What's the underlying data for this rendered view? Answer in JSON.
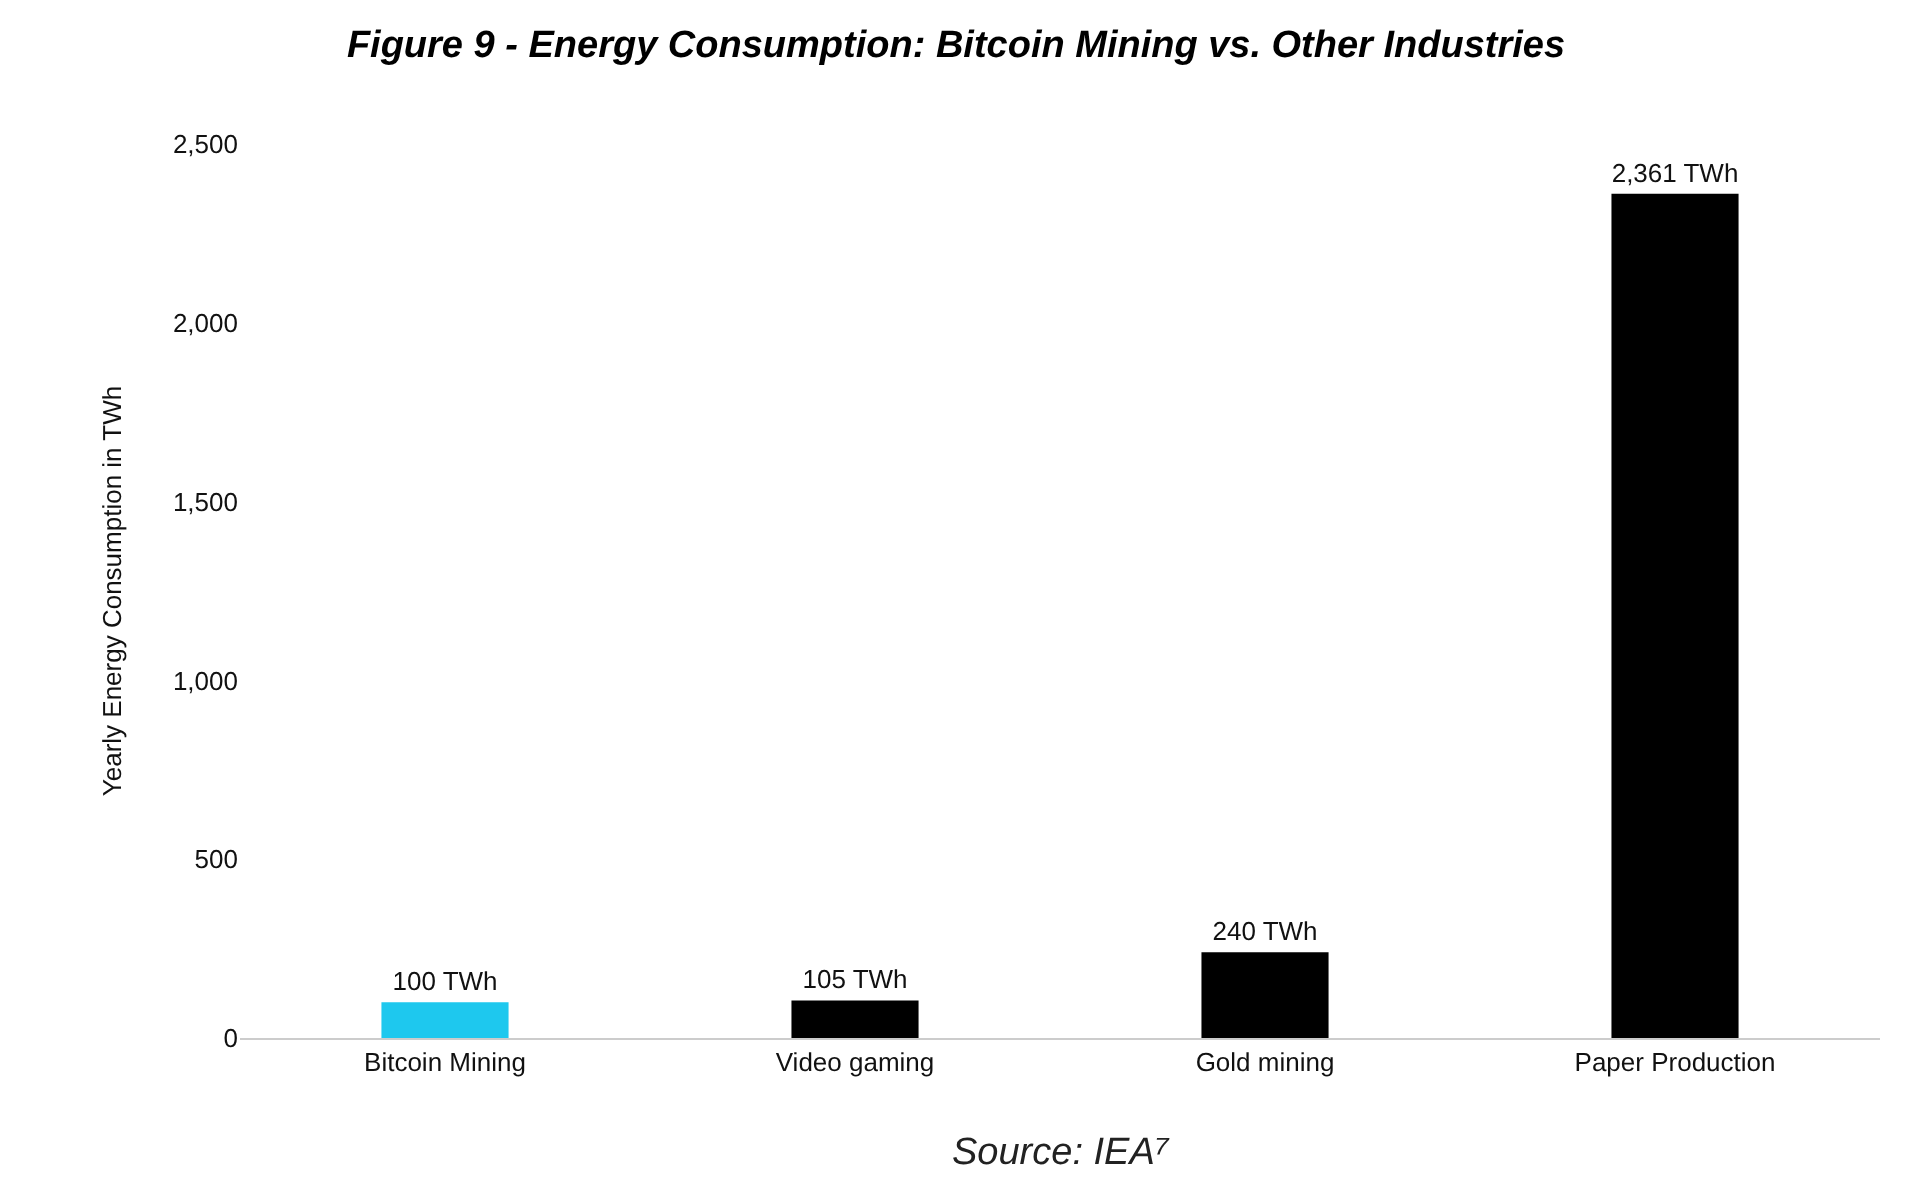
{
  "chart_data": {
    "type": "bar",
    "title": "Figure 9 - Energy Consumption: Bitcoin Mining vs. Other Industries",
    "ylabel": "Yearly Energy Consumption in TWh",
    "categories": [
      "Bitcoin Mining",
      "Video gaming",
      "Gold mining",
      "Paper Production"
    ],
    "values": [
      100,
      105,
      240,
      2361
    ],
    "colors": [
      "#1ec8ee",
      "#000000",
      "#000000",
      "#000000"
    ],
    "value_labels": [
      "100 TWh",
      "105 TWh",
      "240 TWh",
      "2,361 TWh"
    ],
    "ylim": [
      0,
      2500
    ],
    "yticks": [
      0,
      500,
      {
        "value": 1000,
        "label": "1,000"
      },
      {
        "value": 1500,
        "label": "1,500"
      },
      {
        "value": 2000,
        "label": "2,000"
      },
      {
        "value": 2500,
        "label": "2,500"
      }
    ],
    "grid": false,
    "annotations": [
      "Source: IEA⁷"
    ]
  }
}
